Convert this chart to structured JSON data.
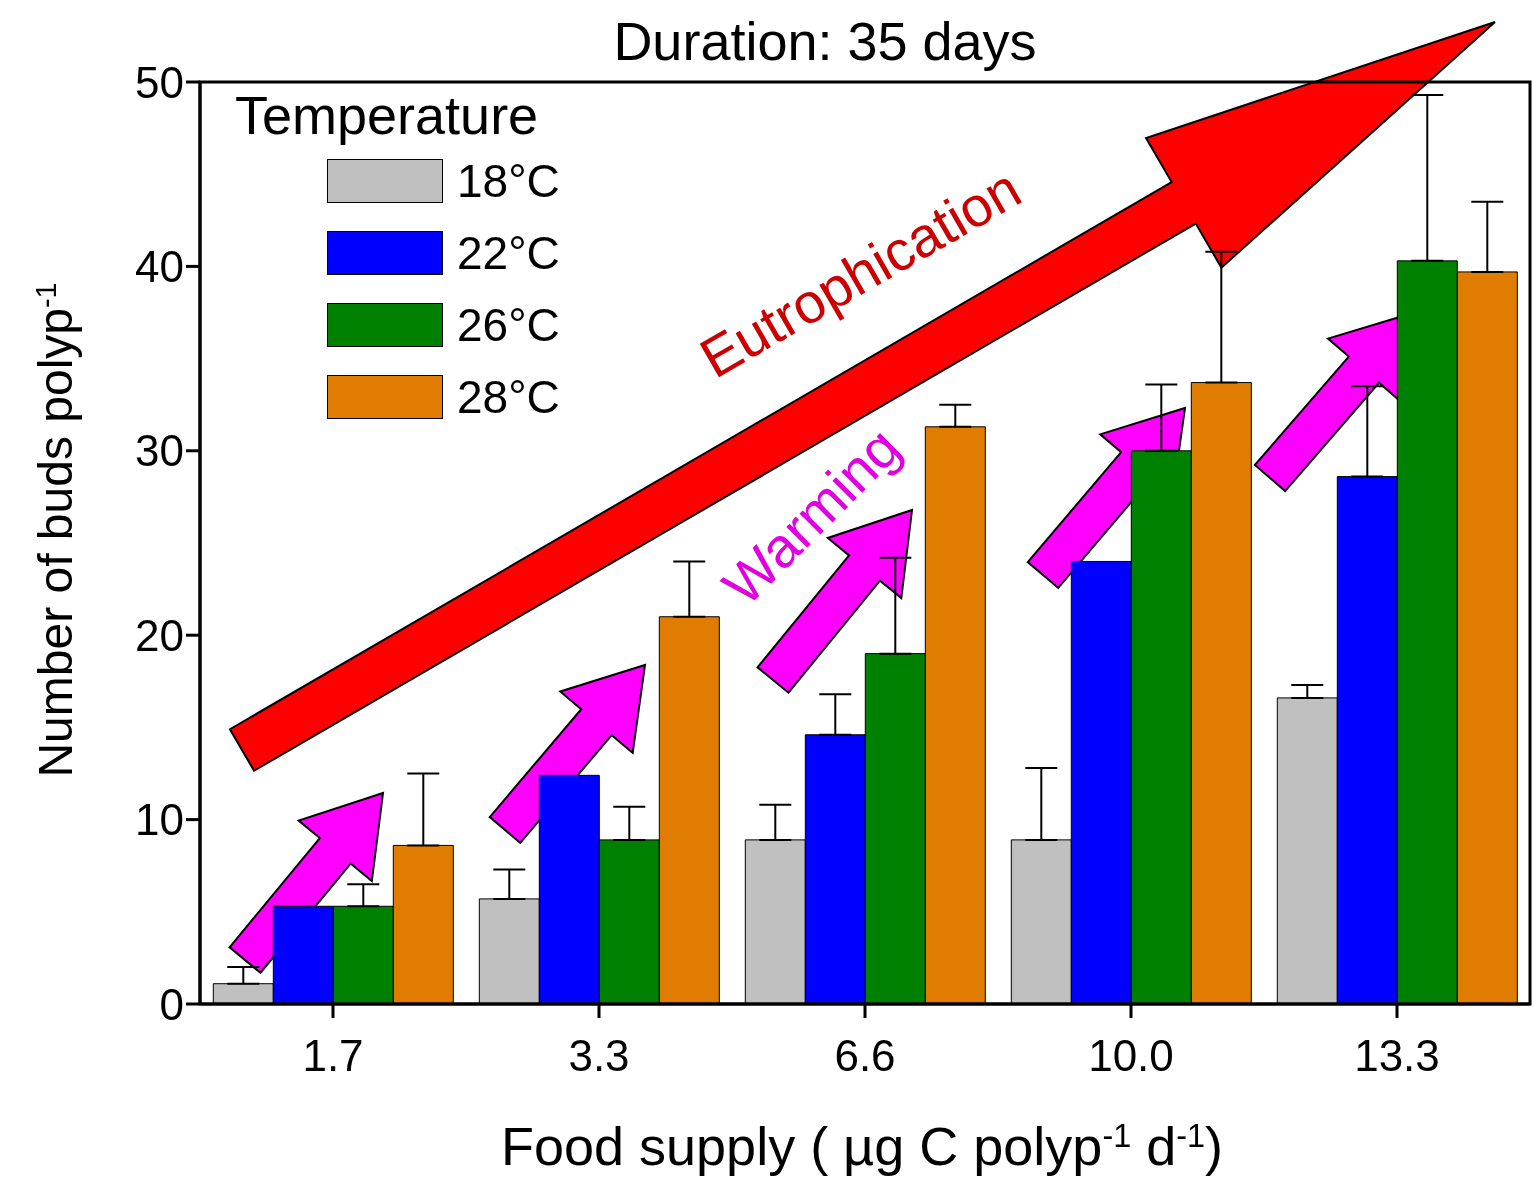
{
  "chart_data": {
    "type": "bar",
    "title": "Duration: 35 days",
    "xlabel": "Food supply ( µg C polyp$^{-1}$ d$^{-1}$)",
    "ylabel": "Number of buds polyp$^{-1}$",
    "legend_title": "Temperature",
    "categories": [
      "1.7",
      "3.3",
      "6.6",
      "10.0",
      "13.3"
    ],
    "series": [
      {
        "name": "18°C",
        "color": "#c0c0c0",
        "values": [
          1.1,
          5.7,
          8.9,
          8.9,
          16.6
        ],
        "errors": [
          [
            1.1,
            2.0
          ],
          [
            5.7,
            7.3
          ],
          [
            8.9,
            10.8
          ],
          [
            8.9,
            12.8
          ],
          [
            16.6,
            17.3
          ]
        ]
      },
      {
        "name": "22°C",
        "color": "#0000ff",
        "values": [
          5.3,
          12.4,
          14.6,
          24.0,
          28.6
        ],
        "errors": [
          null,
          null,
          [
            14.6,
            16.8
          ],
          null,
          [
            28.6,
            33.5
          ]
        ]
      },
      {
        "name": "26°C",
        "color": "#008000",
        "values": [
          5.3,
          8.9,
          19.0,
          30.0,
          40.3
        ],
        "errors": [
          [
            5.3,
            6.5
          ],
          [
            8.9,
            10.7
          ],
          [
            19.0,
            24.2
          ],
          [
            30.0,
            33.6
          ],
          [
            40.3,
            49.3
          ]
        ]
      },
      {
        "name": "28°C",
        "color": "#e07c00",
        "values": [
          8.6,
          21.0,
          31.3,
          33.7,
          39.7
        ],
        "errors": [
          [
            8.6,
            12.5
          ],
          [
            21.0,
            24.0
          ],
          [
            31.3,
            32.5
          ],
          [
            33.7,
            40.8
          ],
          [
            39.7,
            43.5
          ]
        ]
      }
    ],
    "ylim": [
      0,
      50
    ],
    "yticks": [
      0,
      10,
      20,
      30,
      40,
      50
    ],
    "legend": "top left",
    "annotations": [
      "Eutrophication",
      "Warming"
    ]
  }
}
